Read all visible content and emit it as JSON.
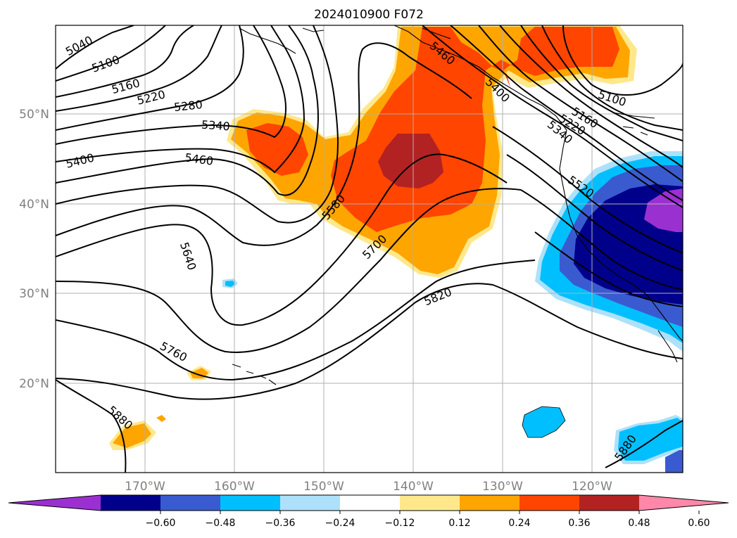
{
  "title": "2024010900 F072",
  "lon_labels": [
    "170°W",
    "160°W",
    "150°W",
    "140°W",
    "130°W",
    "120°W"
  ],
  "lat_labels": [
    "50°N",
    "40°N",
    "30°N",
    "20°N"
  ],
  "colorbar": {
    "ticks": [
      "−0.60",
      "−0.48",
      "−0.36",
      "−0.24",
      "−0.12",
      "0.12",
      "0.24",
      "0.36",
      "0.48",
      "0.60"
    ],
    "colors": [
      "#9b30d0",
      "#00008b",
      "#3a5bd0",
      "#00bfff",
      "#ade1fa",
      "#ffffff",
      "#ffe88c",
      "#ffa500",
      "#ff4500",
      "#b22222",
      "#ff88aa"
    ]
  },
  "contour_labels": [
    "5040",
    "5100",
    "5160",
    "5220",
    "5280",
    "5340",
    "5400",
    "5460",
    "5580",
    "5640",
    "5700",
    "5760",
    "5820",
    "5880",
    "5460",
    "5400",
    "5100",
    "5160",
    "5220",
    "5340",
    "5520",
    "5880"
  ]
}
